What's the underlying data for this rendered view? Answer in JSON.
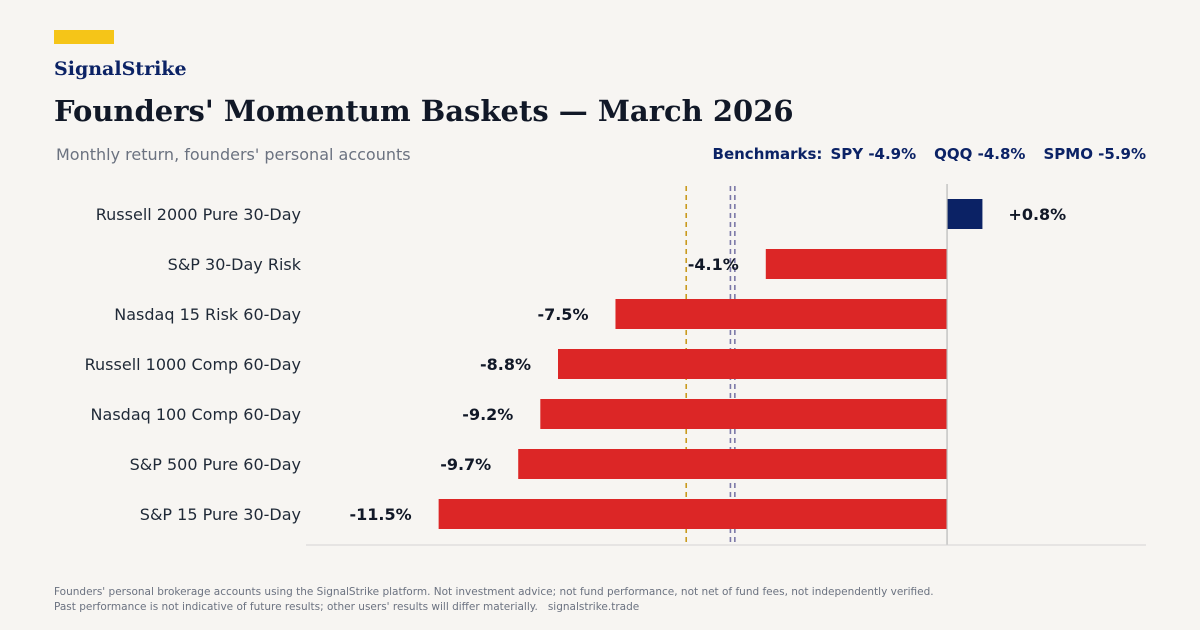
{
  "brand": {
    "name": "SignalStrike",
    "accent_color": "#f5c518",
    "navy_color": "#0b2265"
  },
  "header": {
    "title": "Founders' Momentum Baskets — March 2026",
    "subtitle": "Monthly return, founders' personal accounts"
  },
  "benchmarks": {
    "prefix": "Benchmarks:",
    "items": [
      {
        "label": "SPY -4.9%"
      },
      {
        "label": "QQQ -4.8%"
      },
      {
        "label": "SPMO -5.9%"
      }
    ]
  },
  "chart_data": {
    "type": "bar",
    "orientation": "horizontal",
    "categories": [
      "Russell 2000 Pure 30-Day",
      "S&P 30-Day Risk",
      "Nasdaq 15 Risk 60-Day",
      "Russell 1000 Comp 60-Day",
      "Nasdaq 100 Comp 60-Day",
      "S&P 500 Pure 60-Day",
      "S&P 15 Pure 30-Day"
    ],
    "values": [
      0.8,
      -4.1,
      -7.5,
      -8.8,
      -9.2,
      -9.7,
      -11.5
    ],
    "value_labels": [
      "+0.8%",
      "-4.1%",
      "-7.5%",
      "-8.8%",
      "-9.2%",
      "-9.7%",
      "-11.5%"
    ],
    "xlim": [
      -14.5,
      4.5
    ],
    "reference_lines": [
      {
        "name": "SPY",
        "value": -4.9,
        "style": "dashed",
        "color": "#7b78a8"
      },
      {
        "name": "QQQ",
        "value": -4.8,
        "style": "dashed",
        "color": "#7b78a8"
      },
      {
        "name": "SPMO",
        "value": -5.9,
        "style": "dashed",
        "color": "#c99a1e"
      }
    ],
    "colors": {
      "positive": "#0b2265",
      "negative": "#dc2626",
      "zero_line": "#b8b8b8",
      "axis": "#d4d4d4"
    },
    "grid": false,
    "legend": "none"
  },
  "footer": {
    "line1": "Founders' personal brokerage accounts using the SignalStrike platform. Not investment advice; not fund performance, not net of fund fees, not independently verified.",
    "line2": "Past performance is not indicative of future results; other users' results will differ materially.",
    "site": "signalstrike.trade"
  }
}
